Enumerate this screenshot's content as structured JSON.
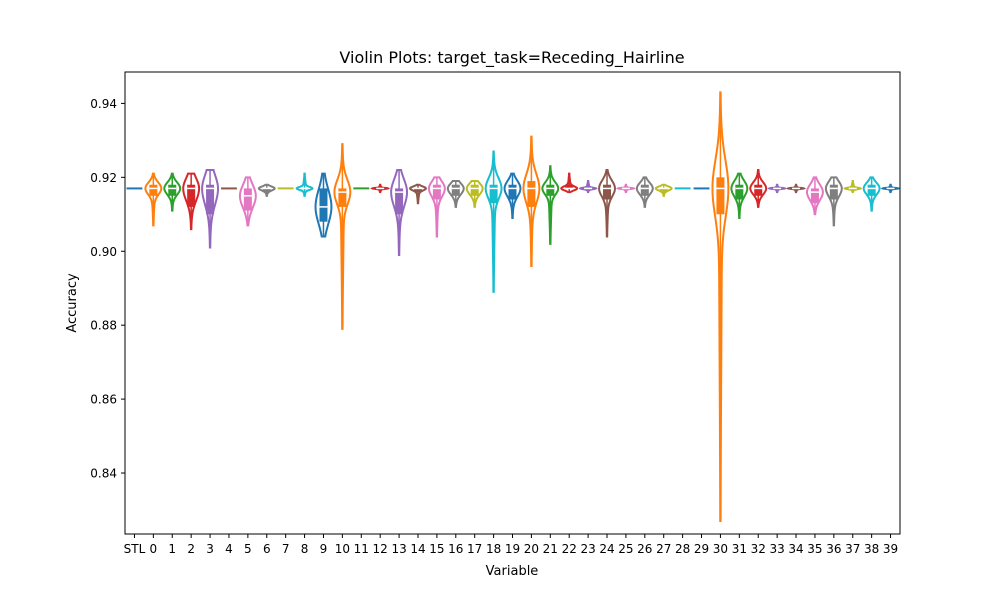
{
  "chart_data": {
    "type": "violin",
    "title": "Violin Plots: target_task=Receding_Hairline",
    "xlabel": "Variable",
    "ylabel": "Accuracy",
    "ylim": [
      0.8235,
      0.9485
    ],
    "yticks": [
      0.84,
      0.86,
      0.88,
      0.9,
      0.92,
      0.94
    ],
    "ytick_labels": [
      "0.84",
      "0.86",
      "0.88",
      "0.90",
      "0.92",
      "0.94"
    ],
    "categories": [
      "STL",
      "0",
      "1",
      "2",
      "3",
      "4",
      "5",
      "6",
      "7",
      "8",
      "9",
      "10",
      "11",
      "12",
      "13",
      "14",
      "15",
      "16",
      "17",
      "18",
      "19",
      "20",
      "21",
      "22",
      "23",
      "24",
      "25",
      "26",
      "27",
      "28",
      "29",
      "30",
      "31",
      "32",
      "33",
      "34",
      "35",
      "36",
      "37",
      "38",
      "39"
    ],
    "palette": [
      "#1f77b4",
      "#ff7f0e",
      "#2ca02c",
      "#d62728",
      "#9467bd",
      "#8c564b",
      "#e377c2",
      "#7f7f7f",
      "#bcbd22",
      "#17becf"
    ],
    "grid": false,
    "series": [
      {
        "category": "STL",
        "min": 0.917,
        "q1": 0.917,
        "median": 0.917,
        "q3": 0.917,
        "max": 0.917
      },
      {
        "category": "0",
        "min": 0.907,
        "q1": 0.915,
        "median": 0.917,
        "q3": 0.918,
        "max": 0.921
      },
      {
        "category": "1",
        "min": 0.911,
        "q1": 0.915,
        "median": 0.917,
        "q3": 0.918,
        "max": 0.921
      },
      {
        "category": "2",
        "min": 0.906,
        "q1": 0.912,
        "median": 0.917,
        "q3": 0.918,
        "max": 0.921
      },
      {
        "category": "3",
        "min": 0.901,
        "q1": 0.91,
        "median": 0.917,
        "q3": 0.918,
        "max": 0.922
      },
      {
        "category": "4",
        "min": 0.917,
        "q1": 0.917,
        "median": 0.917,
        "q3": 0.917,
        "max": 0.917
      },
      {
        "category": "5",
        "min": 0.907,
        "q1": 0.911,
        "median": 0.915,
        "q3": 0.917,
        "max": 0.92
      },
      {
        "category": "6",
        "min": 0.915,
        "q1": 0.916,
        "median": 0.917,
        "q3": 0.917,
        "max": 0.918
      },
      {
        "category": "7",
        "min": 0.917,
        "q1": 0.917,
        "median": 0.917,
        "q3": 0.917,
        "max": 0.917
      },
      {
        "category": "8",
        "min": 0.915,
        "q1": 0.917,
        "median": 0.917,
        "q3": 0.917,
        "max": 0.921
      },
      {
        "category": "9",
        "min": 0.904,
        "q1": 0.908,
        "median": 0.912,
        "q3": 0.917,
        "max": 0.921
      },
      {
        "category": "10",
        "min": 0.879,
        "q1": 0.912,
        "median": 0.916,
        "q3": 0.917,
        "max": 0.929
      },
      {
        "category": "11",
        "min": 0.917,
        "q1": 0.917,
        "median": 0.917,
        "q3": 0.917,
        "max": 0.917
      },
      {
        "category": "12",
        "min": 0.916,
        "q1": 0.917,
        "median": 0.917,
        "q3": 0.917,
        "max": 0.918
      },
      {
        "category": "13",
        "min": 0.899,
        "q1": 0.91,
        "median": 0.916,
        "q3": 0.917,
        "max": 0.922
      },
      {
        "category": "14",
        "min": 0.913,
        "q1": 0.916,
        "median": 0.917,
        "q3": 0.917,
        "max": 0.918
      },
      {
        "category": "15",
        "min": 0.904,
        "q1": 0.914,
        "median": 0.917,
        "q3": 0.918,
        "max": 0.92
      },
      {
        "category": "16",
        "min": 0.912,
        "q1": 0.915,
        "median": 0.917,
        "q3": 0.918,
        "max": 0.919
      },
      {
        "category": "17",
        "min": 0.912,
        "q1": 0.915,
        "median": 0.917,
        "q3": 0.918,
        "max": 0.919
      },
      {
        "category": "18",
        "min": 0.889,
        "q1": 0.913,
        "median": 0.917,
        "q3": 0.918,
        "max": 0.927
      },
      {
        "category": "19",
        "min": 0.909,
        "q1": 0.914,
        "median": 0.917,
        "q3": 0.918,
        "max": 0.921
      },
      {
        "category": "20",
        "min": 0.896,
        "q1": 0.912,
        "median": 0.917,
        "q3": 0.919,
        "max": 0.931
      },
      {
        "category": "21",
        "min": 0.902,
        "q1": 0.915,
        "median": 0.917,
        "q3": 0.918,
        "max": 0.923
      },
      {
        "category": "22",
        "min": 0.916,
        "q1": 0.917,
        "median": 0.917,
        "q3": 0.918,
        "max": 0.921
      },
      {
        "category": "23",
        "min": 0.916,
        "q1": 0.917,
        "median": 0.917,
        "q3": 0.917,
        "max": 0.919
      },
      {
        "category": "24",
        "min": 0.904,
        "q1": 0.914,
        "median": 0.917,
        "q3": 0.918,
        "max": 0.922
      },
      {
        "category": "25",
        "min": 0.916,
        "q1": 0.917,
        "median": 0.917,
        "q3": 0.917,
        "max": 0.918
      },
      {
        "category": "26",
        "min": 0.912,
        "q1": 0.915,
        "median": 0.917,
        "q3": 0.918,
        "max": 0.92
      },
      {
        "category": "27",
        "min": 0.915,
        "q1": 0.916,
        "median": 0.917,
        "q3": 0.917,
        "max": 0.918
      },
      {
        "category": "28",
        "min": 0.917,
        "q1": 0.917,
        "median": 0.917,
        "q3": 0.917,
        "max": 0.917
      },
      {
        "category": "29",
        "min": 0.917,
        "q1": 0.917,
        "median": 0.917,
        "q3": 0.917,
        "max": 0.917
      },
      {
        "category": "30",
        "min": 0.827,
        "q1": 0.91,
        "median": 0.917,
        "q3": 0.92,
        "max": 0.943
      },
      {
        "category": "31",
        "min": 0.909,
        "q1": 0.914,
        "median": 0.917,
        "q3": 0.918,
        "max": 0.921
      },
      {
        "category": "32",
        "min": 0.912,
        "q1": 0.915,
        "median": 0.917,
        "q3": 0.918,
        "max": 0.922
      },
      {
        "category": "33",
        "min": 0.916,
        "q1": 0.917,
        "median": 0.917,
        "q3": 0.917,
        "max": 0.918
      },
      {
        "category": "34",
        "min": 0.916,
        "q1": 0.917,
        "median": 0.917,
        "q3": 0.917,
        "max": 0.918
      },
      {
        "category": "35",
        "min": 0.91,
        "q1": 0.913,
        "median": 0.916,
        "q3": 0.917,
        "max": 0.92
      },
      {
        "category": "36",
        "min": 0.907,
        "q1": 0.914,
        "median": 0.917,
        "q3": 0.918,
        "max": 0.92
      },
      {
        "category": "37",
        "min": 0.916,
        "q1": 0.917,
        "median": 0.917,
        "q3": 0.917,
        "max": 0.919
      },
      {
        "category": "38",
        "min": 0.911,
        "q1": 0.915,
        "median": 0.917,
        "q3": 0.918,
        "max": 0.92
      },
      {
        "category": "39",
        "min": 0.916,
        "q1": 0.917,
        "median": 0.917,
        "q3": 0.917,
        "max": 0.918
      }
    ]
  }
}
